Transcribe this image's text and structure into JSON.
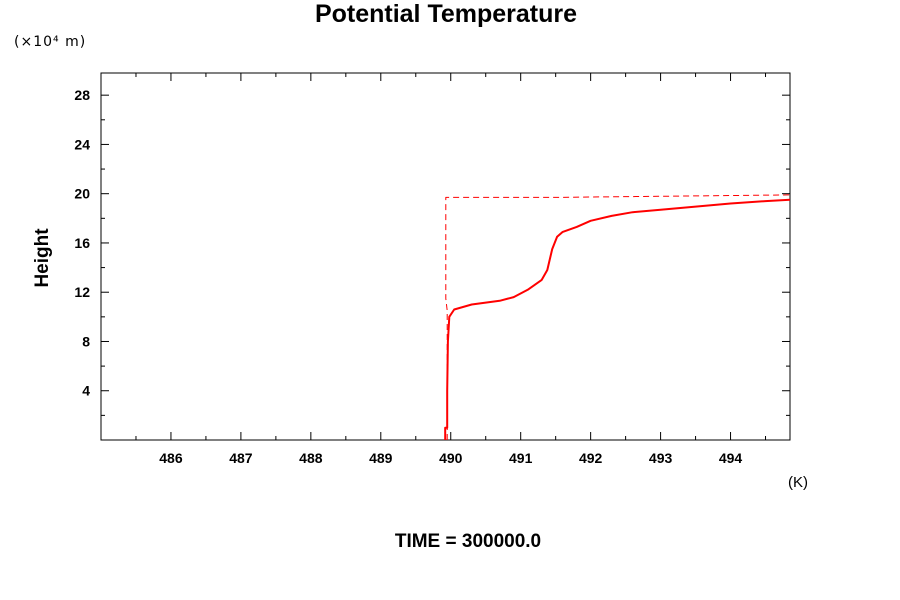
{
  "chart_data": {
    "type": "line",
    "title": "Potential Temperature",
    "ylabel": "Height",
    "yunit": "(×10⁴ m)",
    "xunit": "(K)",
    "footer": "TIME = 300000.0",
    "xlim": [
      485.0,
      494.85
    ],
    "ylim": [
      0,
      29.8
    ],
    "xticks": [
      486,
      487,
      488,
      489,
      490,
      491,
      492,
      493,
      494
    ],
    "yticks": [
      4,
      8,
      12,
      16,
      20,
      24,
      28
    ],
    "grid": false,
    "series": [
      {
        "style": "dashed",
        "color": "#ff0000",
        "points": [
          [
            489.95,
            0.0
          ],
          [
            489.95,
            10.5
          ],
          [
            489.93,
            11.5
          ],
          [
            489.93,
            19.7
          ],
          [
            491.5,
            19.7
          ],
          [
            494.85,
            19.9
          ]
        ]
      },
      {
        "style": "solid",
        "color": "#ff0000",
        "points": [
          [
            489.92,
            0.0
          ],
          [
            489.92,
            1.0
          ],
          [
            489.95,
            1.0
          ],
          [
            489.95,
            4.0
          ],
          [
            489.96,
            8.0
          ],
          [
            489.98,
            10.0
          ],
          [
            490.05,
            10.6
          ],
          [
            490.3,
            11.0
          ],
          [
            490.7,
            11.3
          ],
          [
            490.9,
            11.6
          ],
          [
            491.1,
            12.2
          ],
          [
            491.3,
            13.0
          ],
          [
            491.38,
            13.8
          ],
          [
            491.45,
            15.5
          ],
          [
            491.52,
            16.5
          ],
          [
            491.6,
            16.9
          ],
          [
            491.8,
            17.3
          ],
          [
            492.0,
            17.8
          ],
          [
            492.3,
            18.2
          ],
          [
            492.6,
            18.5
          ],
          [
            493.0,
            18.7
          ],
          [
            493.5,
            18.95
          ],
          [
            494.0,
            19.2
          ],
          [
            494.5,
            19.4
          ],
          [
            494.85,
            19.5
          ]
        ]
      }
    ]
  }
}
